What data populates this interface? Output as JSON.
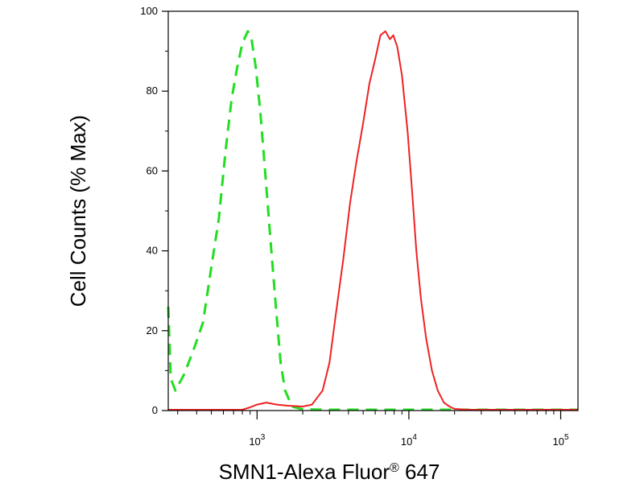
{
  "chart_data": {
    "type": "line",
    "title": "",
    "xlabel": "SMN1-Alexa Fluor",
    "xlabel_superscript": "®",
    "xlabel_suffix": " 647",
    "ylabel": "Cell Counts (% Max)",
    "x_scale": "log",
    "xlim": [
      260,
      130000
    ],
    "ylim": [
      0,
      100
    ],
    "y_ticks": [
      0,
      20,
      40,
      60,
      80,
      100
    ],
    "y_tick_labels": [
      "0",
      "20",
      "40",
      "60",
      "80",
      "100"
    ],
    "x_major_ticks": [
      1000,
      10000,
      100000
    ],
    "x_tick_labels": [
      {
        "base": "10",
        "exp": "3"
      },
      {
        "base": "10",
        "exp": "4"
      },
      {
        "base": "10",
        "exp": "5"
      }
    ],
    "grid": false,
    "legend": "none",
    "series": [
      {
        "color": "#22dd22",
        "style": "dashed",
        "points": [
          [
            260,
            26
          ],
          [
            270,
            8
          ],
          [
            290,
            5
          ],
          [
            330,
            9
          ],
          [
            380,
            15
          ],
          [
            440,
            22
          ],
          [
            500,
            36
          ],
          [
            560,
            48
          ],
          [
            620,
            65
          ],
          [
            680,
            78
          ],
          [
            740,
            86
          ],
          [
            800,
            92
          ],
          [
            870,
            95
          ],
          [
            920,
            93
          ],
          [
            980,
            86
          ],
          [
            1050,
            75
          ],
          [
            1130,
            60
          ],
          [
            1230,
            42
          ],
          [
            1330,
            26
          ],
          [
            1430,
            12
          ],
          [
            1530,
            5
          ],
          [
            1700,
            1
          ],
          [
            2000,
            0.3
          ],
          [
            3000,
            0.2
          ],
          [
            130000,
            0.2
          ]
        ]
      },
      {
        "color": "#ee2222",
        "style": "solid",
        "points": [
          [
            260,
            0.2
          ],
          [
            800,
            0.2
          ],
          [
            900,
            0.8
          ],
          [
            1000,
            1.5
          ],
          [
            1150,
            2
          ],
          [
            1350,
            1.5
          ],
          [
            1600,
            1.2
          ],
          [
            2000,
            1
          ],
          [
            2300,
            1.5
          ],
          [
            2700,
            5
          ],
          [
            3000,
            12
          ],
          [
            3300,
            24
          ],
          [
            3700,
            38
          ],
          [
            4100,
            52
          ],
          [
            4500,
            62
          ],
          [
            5000,
            72
          ],
          [
            5500,
            82
          ],
          [
            6000,
            88
          ],
          [
            6500,
            94
          ],
          [
            7000,
            95
          ],
          [
            7500,
            93
          ],
          [
            7900,
            94
          ],
          [
            8400,
            91
          ],
          [
            9000,
            84
          ],
          [
            9800,
            70
          ],
          [
            10500,
            55
          ],
          [
            11200,
            40
          ],
          [
            12000,
            28
          ],
          [
            13000,
            18
          ],
          [
            14200,
            10
          ],
          [
            15500,
            5
          ],
          [
            17000,
            2
          ],
          [
            18500,
            1
          ],
          [
            20000,
            0.4
          ],
          [
            25000,
            0.2
          ],
          [
            130000,
            0.2
          ]
        ]
      }
    ]
  }
}
